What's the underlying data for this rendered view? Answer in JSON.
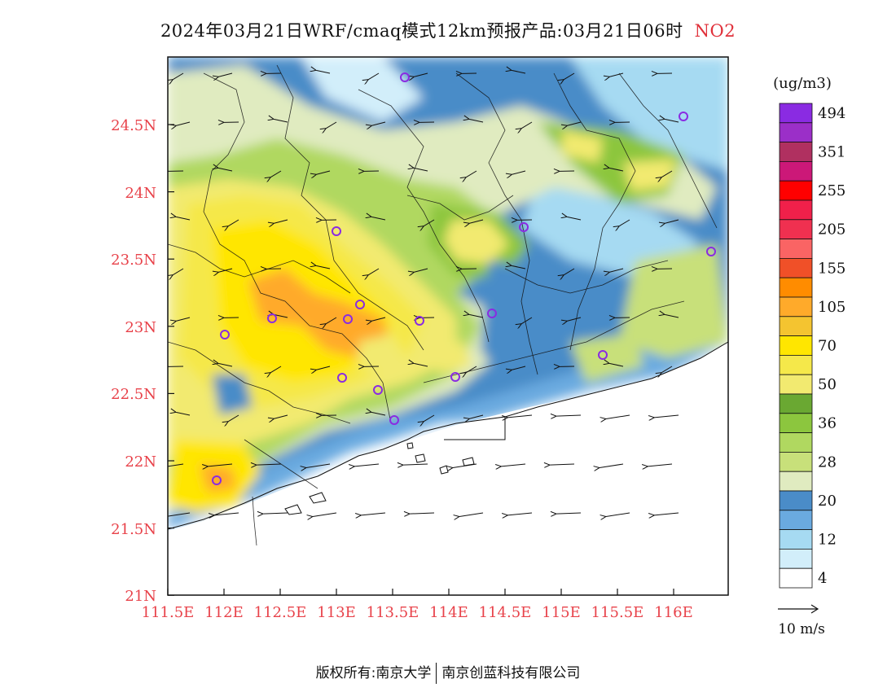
{
  "title": {
    "main": "2024年03月21日WRF/cmaq模式12km预报产品:03月21日06时",
    "pollutant": "NO2"
  },
  "colors": {
    "axis_label": "#e8424a",
    "sea": "#ffffff"
  },
  "map": {
    "lat_labels": [
      "24.5N",
      "24N",
      "23.5N",
      "23N",
      "22.5N",
      "22N",
      "21.5N",
      "21N"
    ],
    "lon_labels": [
      "111.5E",
      "112E",
      "112.5E",
      "113E",
      "113.5E",
      "114E",
      "114.5E",
      "115E",
      "115.5E",
      "116E"
    ]
  },
  "legend": {
    "unit": "(ug/m3)",
    "levels": [
      {
        "label": "494",
        "color": "#8a2be2"
      },
      {
        "label": "",
        "color": "#9b2fc8"
      },
      {
        "label": "351",
        "color": "#b03060"
      },
      {
        "label": "",
        "color": "#cc1878"
      },
      {
        "label": "255",
        "color": "#ff0000"
      },
      {
        "label": "",
        "color": "#f0204a"
      },
      {
        "label": "205",
        "color": "#f03050"
      },
      {
        "label": "",
        "color": "#fa6464"
      },
      {
        "label": "155",
        "color": "#f05028"
      },
      {
        "label": "",
        "color": "#ff8c00"
      },
      {
        "label": "105",
        "color": "#ffaa2a"
      },
      {
        "label": "",
        "color": "#f4c430"
      },
      {
        "label": "70",
        "color": "#ffe600"
      },
      {
        "label": "",
        "color": "#f5e84a"
      },
      {
        "label": "50",
        "color": "#f2ea70"
      },
      {
        "label": "",
        "color": "#6aa832"
      },
      {
        "label": "36",
        "color": "#8cc63e"
      },
      {
        "label": "",
        "color": "#b0d860"
      },
      {
        "label": "28",
        "color": "#c8e07a"
      },
      {
        "label": "",
        "color": "#e0ebc0"
      },
      {
        "label": "20",
        "color": "#4a8cc8"
      },
      {
        "label": "",
        "color": "#6aaae0"
      },
      {
        "label": "12",
        "color": "#a6daf2"
      },
      {
        "label": "",
        "color": "#d2eefa"
      },
      {
        "label": "4",
        "color": "#ffffff"
      }
    ],
    "wind_reference": "10 m/s"
  },
  "footer": {
    "left": "版权所有:南京大学",
    "right": "南京创蓝科技有限公司"
  }
}
